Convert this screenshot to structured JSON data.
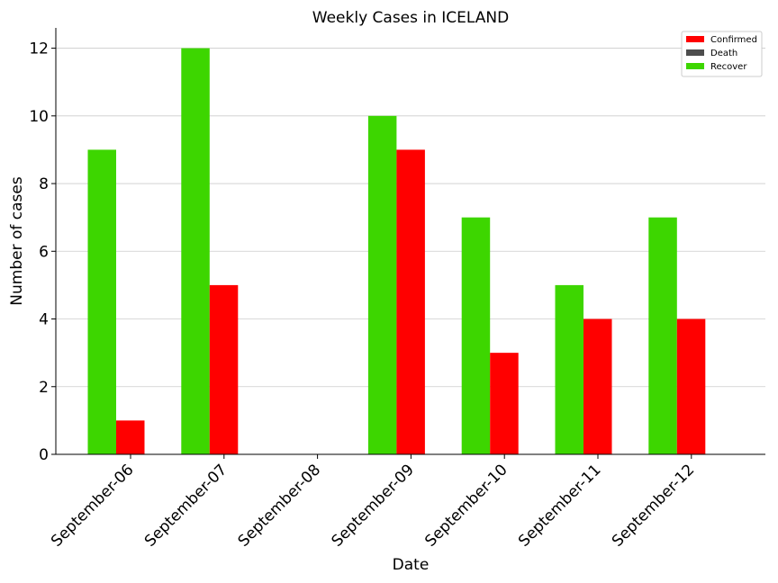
{
  "chart_data": {
    "type": "bar",
    "title": "Weekly Cases in ICELAND",
    "xlabel": "Date",
    "ylabel": "Number of cases",
    "ylim": [
      0,
      12.6
    ],
    "yticks": [
      0,
      2,
      4,
      6,
      8,
      10,
      12
    ],
    "grid": "y",
    "legend_position": "top-right",
    "categories": [
      "September-06",
      "September-07",
      "September-08",
      "September-09",
      "September-10",
      "September-11",
      "September-12"
    ],
    "series": [
      {
        "name": "Confirmed",
        "color": "#ff0000",
        "values": [
          1,
          5,
          0,
          9,
          3,
          4,
          4
        ]
      },
      {
        "name": "Death",
        "color": "#4d4d4d",
        "values": [
          0,
          0,
          0,
          0,
          0,
          0,
          0
        ]
      },
      {
        "name": "Recover",
        "color": "#3dd600",
        "values": [
          9,
          12,
          0,
          10,
          7,
          5,
          7
        ]
      }
    ]
  }
}
